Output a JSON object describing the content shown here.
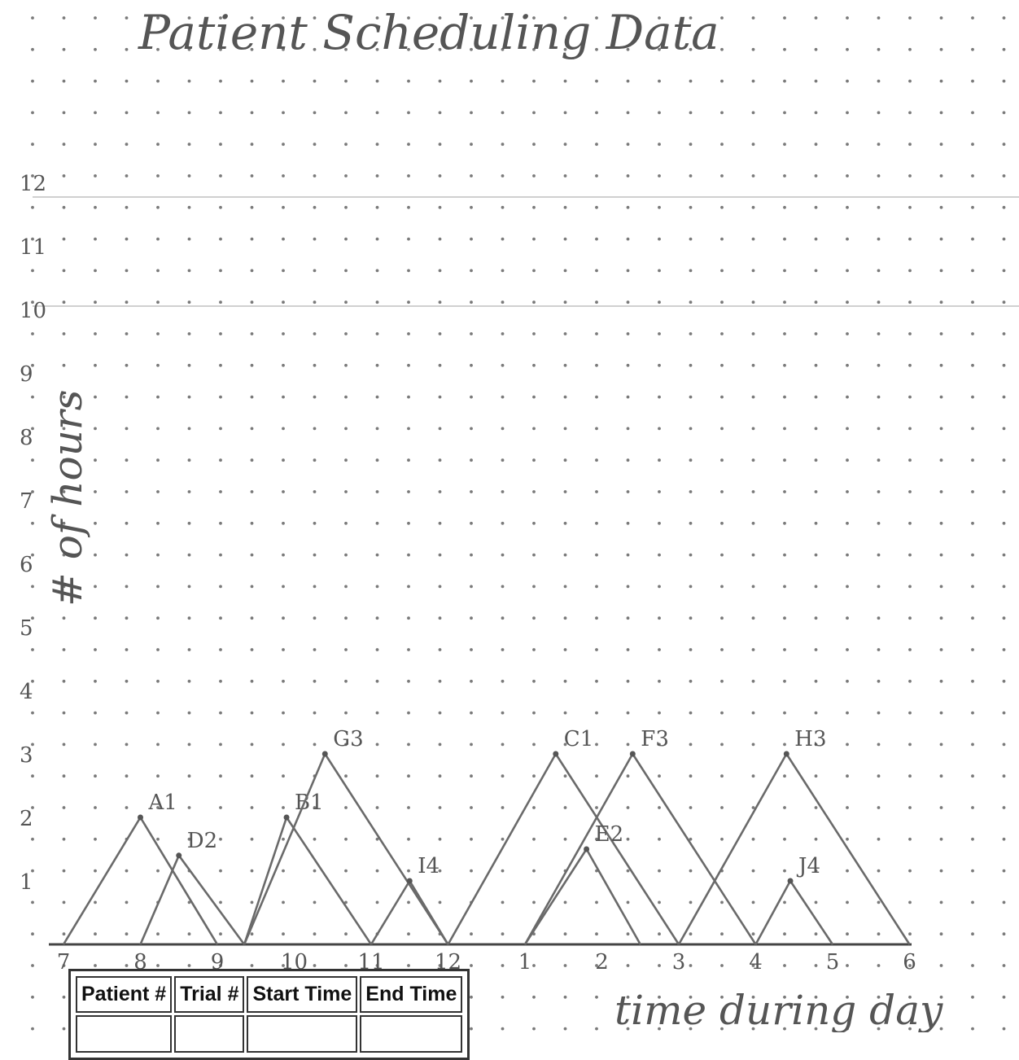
{
  "chart_data": {
    "type": "line",
    "title": "Patient Scheduling Data",
    "xlabel": "time during day",
    "ylabel": "# of hours",
    "x_ticks": [
      "7",
      "8",
      "9",
      "10",
      "11",
      "12",
      "1",
      "2",
      "3",
      "4",
      "5",
      "6"
    ],
    "y_ticks": [
      "1",
      "2",
      "3",
      "4",
      "5",
      "6",
      "7",
      "8",
      "9",
      "10",
      "11",
      "12"
    ],
    "xlim": [
      7,
      18
    ],
    "ylim": [
      0,
      12
    ],
    "grid": "dotted",
    "series": [
      {
        "name": "A1",
        "x": [
          7,
          8,
          9
        ],
        "y": [
          0,
          2,
          0
        ]
      },
      {
        "name": "D2",
        "x": [
          8,
          8.5,
          9.35
        ],
        "y": [
          0,
          1.4,
          0
        ]
      },
      {
        "name": "B1",
        "x": [
          9.35,
          9.9,
          11
        ],
        "y": [
          0,
          2,
          0
        ]
      },
      {
        "name": "G3",
        "x": [
          9.35,
          10.4,
          12
        ],
        "y": [
          0,
          3,
          0
        ]
      },
      {
        "name": "I4",
        "x": [
          11,
          11.5,
          12
        ],
        "y": [
          0,
          1,
          0
        ]
      },
      {
        "name": "C1",
        "x": [
          12,
          13.4,
          15
        ],
        "y": [
          0,
          3,
          0
        ]
      },
      {
        "name": "E2",
        "x": [
          13,
          13.8,
          14.5
        ],
        "y": [
          0,
          1.5,
          0
        ]
      },
      {
        "name": "F3",
        "x": [
          13,
          14.4,
          16
        ],
        "y": [
          0,
          3,
          0
        ]
      },
      {
        "name": "H3",
        "x": [
          15,
          16.4,
          18
        ],
        "y": [
          0,
          3,
          0
        ]
      },
      {
        "name": "J4",
        "x": [
          16,
          16.45,
          17
        ],
        "y": [
          0,
          1,
          0
        ]
      }
    ]
  },
  "table": {
    "headers": [
      "Patient #",
      "Trial #",
      "Start Time",
      "End Time"
    ]
  }
}
